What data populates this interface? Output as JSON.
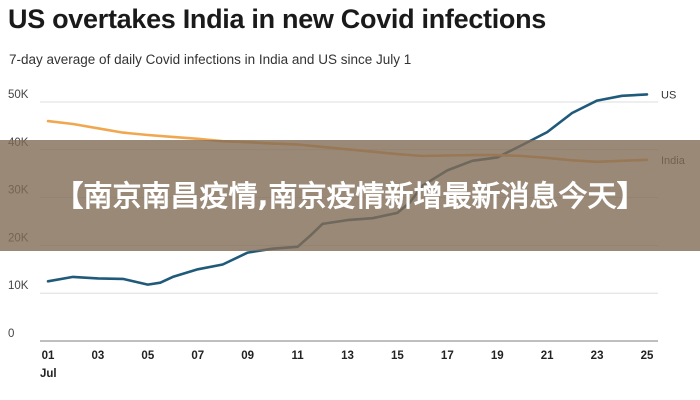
{
  "chart_data": {
    "type": "line",
    "title": "US overtakes India in new Covid infections",
    "subtitle": "7-day average of daily Covid infections in India and US since July 1",
    "xlabel": "Jul",
    "ylabel": "",
    "ylim": [
      0,
      50000
    ],
    "yticks": [
      0,
      10000,
      20000,
      30000,
      40000,
      50000
    ],
    "ytick_labels": [
      "0",
      "10K",
      "20K",
      "30K",
      "40K",
      "50K"
    ],
    "xlim": [
      1,
      25
    ],
    "xticks": [
      1,
      3,
      5,
      7,
      9,
      11,
      13,
      15,
      17,
      19,
      21,
      23,
      25
    ],
    "xtick_labels": [
      "01",
      "03",
      "05",
      "07",
      "09",
      "11",
      "13",
      "15",
      "17",
      "19",
      "21",
      "23",
      "25"
    ],
    "series": [
      {
        "name": "US",
        "color": "#1f5a7a",
        "x": [
          1,
          2,
          3,
          4,
          5,
          5.5,
          6,
          7,
          8,
          9,
          10,
          11,
          11.5,
          12,
          13,
          14,
          15,
          15.5,
          16,
          17,
          18,
          19,
          20,
          21,
          22,
          23,
          24,
          25
        ],
        "values": [
          12500,
          13400,
          13100,
          13000,
          11800,
          12200,
          13400,
          15000,
          16000,
          18500,
          19300,
          19700,
          22000,
          24500,
          25300,
          25700,
          26800,
          29000,
          32500,
          35700,
          37700,
          38400,
          41000,
          43700,
          47700,
          50300,
          51300,
          51600
        ]
      },
      {
        "name": "India",
        "color": "#f0a850",
        "x": [
          1,
          2,
          3,
          4,
          5,
          6,
          7,
          8,
          9,
          10,
          11,
          12,
          13,
          14,
          15,
          16,
          17,
          18,
          19,
          20,
          21,
          22,
          23,
          24,
          25
        ],
        "values": [
          46000,
          45400,
          44500,
          43600,
          43100,
          42700,
          42300,
          41800,
          41600,
          41300,
          41100,
          40600,
          40100,
          39600,
          39100,
          38700,
          38800,
          38900,
          38900,
          38700,
          38300,
          37800,
          37500,
          37700,
          37900
        ]
      }
    ]
  },
  "overlay": {
    "text": "【南京南昌疫情,南京疫情新增最新消息今天】"
  }
}
